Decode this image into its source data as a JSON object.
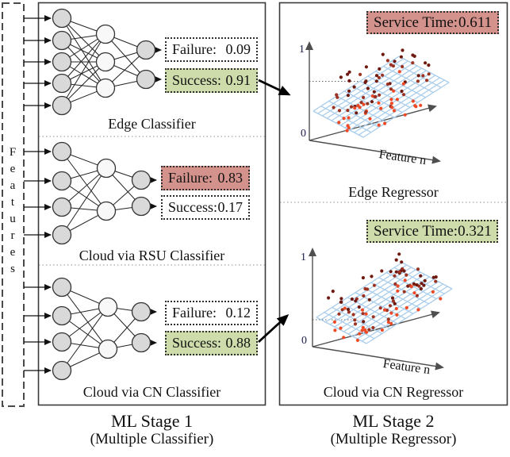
{
  "features": {
    "label": "Features"
  },
  "stage1": {
    "title": "ML Stage 1",
    "subtitle": "(Multiple Classifier)",
    "classifiers": [
      {
        "name": "Edge Classifier",
        "failure_label": "Failure:",
        "failure_value": "0.09",
        "failure_highlight": false,
        "success_label": "Success:",
        "success_value": "0.91",
        "success_highlight": true
      },
      {
        "name": "Cloud via RSU Classifier",
        "failure_label": "Failure:",
        "failure_value": "0.83",
        "failure_highlight": true,
        "success_label": "Success:",
        "success_value": "0.17",
        "success_highlight": false
      },
      {
        "name": "Cloud via CN Classifier",
        "failure_label": "Failure:",
        "failure_value": "0.12",
        "failure_highlight": false,
        "success_label": "Success:",
        "success_value": "0.88",
        "success_highlight": true
      }
    ]
  },
  "stage2": {
    "title": "ML Stage 2",
    "subtitle": "(Multiple Regressor)",
    "regressors": [
      {
        "name": "Edge Regressor",
        "service_label": "Service Time:",
        "service_value": "0.611",
        "badge": "red",
        "y_max": "1",
        "y_min": "0",
        "x_axis": "Feature n"
      },
      {
        "name": "Cloud via CN Regressor",
        "service_label": "Service Time:",
        "service_value": "0.321",
        "badge": "green",
        "y_max": "1",
        "y_min": "0",
        "x_axis": "Feature n"
      }
    ]
  },
  "colors": {
    "success_green": "#cedcab",
    "failure_red": "#d4928c",
    "mesh_blue": "#a9cdeb",
    "dot_dark": "#6f1a10",
    "dot_mid": "#9c3322",
    "dot_bright": "#ef4a26",
    "axis_gray": "#4f4f4f"
  }
}
